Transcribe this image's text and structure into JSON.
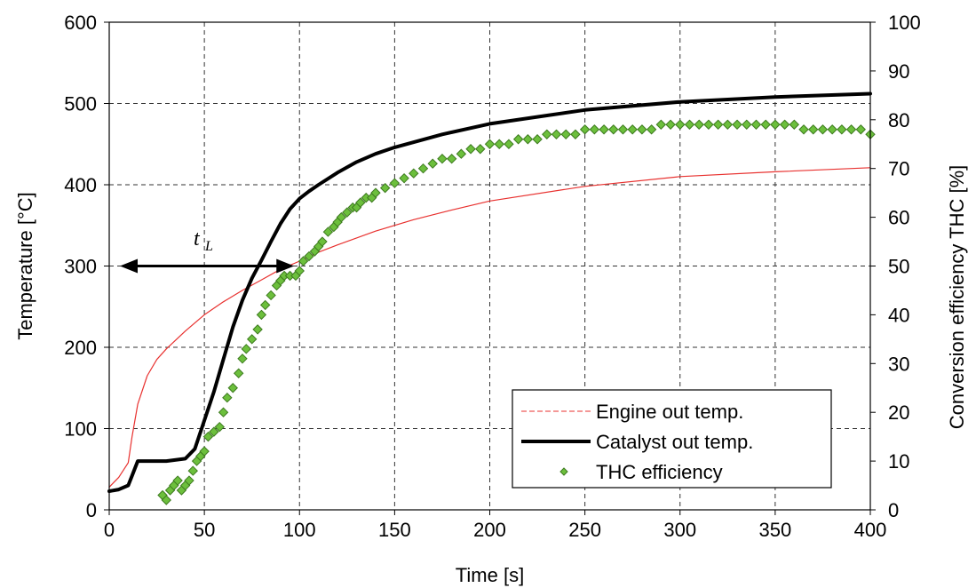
{
  "chart_data": {
    "type": "line",
    "xlabel": "Time [s]",
    "ylabel": "Temperature [°C]",
    "y2label": "Conversion efficiency THC [%]",
    "xlim": [
      0,
      400
    ],
    "ylim": [
      0,
      600
    ],
    "y2lim": [
      0,
      100
    ],
    "xticks": [
      "0",
      "50",
      "100",
      "150",
      "200",
      "250",
      "300",
      "350",
      "400"
    ],
    "yticks": [
      "0",
      "100",
      "200",
      "300",
      "400",
      "500",
      "600"
    ],
    "y2ticks": [
      "0",
      "10",
      "20",
      "30",
      "40",
      "50",
      "60",
      "70",
      "80",
      "90",
      "100"
    ],
    "grid": "dashed",
    "legend_position": "bottom-right",
    "series": [
      {
        "name": "Engine out temp.",
        "style": "thin-line",
        "color": "#e8312f",
        "axis": "left",
        "x": [
          0,
          5,
          10,
          12,
          15,
          20,
          25,
          30,
          40,
          50,
          60,
          70,
          80,
          90,
          100,
          110,
          120,
          140,
          160,
          180,
          200,
          250,
          300,
          350,
          400
        ],
        "y": [
          28,
          40,
          58,
          90,
          130,
          165,
          185,
          198,
          220,
          240,
          256,
          270,
          283,
          296,
          306,
          317,
          326,
          343,
          357,
          369,
          380,
          398,
          410,
          416,
          421
        ]
      },
      {
        "name": "Catalyst out temp.",
        "style": "thick-line",
        "color": "#000000",
        "axis": "left",
        "x": [
          0,
          5,
          10,
          12,
          15,
          20,
          30,
          40,
          45,
          50,
          55,
          60,
          65,
          70,
          75,
          80,
          85,
          90,
          95,
          100,
          105,
          110,
          120,
          130,
          140,
          150,
          175,
          200,
          250,
          300,
          350,
          400
        ],
        "y": [
          23,
          25,
          30,
          42,
          60,
          60,
          60,
          63,
          75,
          110,
          145,
          185,
          225,
          258,
          285,
          307,
          330,
          352,
          370,
          383,
          392,
          400,
          415,
          428,
          438,
          446,
          462,
          475,
          492,
          502,
          508,
          512
        ]
      },
      {
        "name": "THC efficiency",
        "style": "markers",
        "color": "#6cbf3c",
        "axis": "right",
        "x": [
          28,
          30,
          32,
          34,
          36,
          38,
          40,
          42,
          44,
          46,
          48,
          50,
          52,
          55,
          58,
          60,
          62,
          65,
          68,
          70,
          72,
          75,
          78,
          80,
          82,
          85,
          88,
          90,
          92,
          95,
          98,
          100,
          102,
          105,
          108,
          110,
          112,
          115,
          118,
          120,
          122,
          125,
          128,
          130,
          132,
          135,
          138,
          140,
          145,
          150,
          155,
          160,
          165,
          170,
          175,
          180,
          185,
          190,
          195,
          200,
          205,
          210,
          215,
          220,
          225,
          230,
          235,
          240,
          245,
          250,
          255,
          260,
          265,
          270,
          275,
          280,
          285,
          290,
          295,
          300,
          305,
          310,
          315,
          320,
          325,
          330,
          335,
          340,
          345,
          350,
          355,
          360,
          365,
          370,
          375,
          380,
          385,
          390,
          395,
          400
        ],
        "y": [
          3,
          2,
          4,
          5,
          6,
          4,
          5,
          6,
          8,
          10,
          11,
          12,
          15,
          16,
          17,
          20,
          23,
          25,
          28,
          31,
          33,
          35,
          37,
          40,
          42,
          44,
          46,
          47,
          48,
          48,
          48,
          49,
          51,
          52,
          53,
          54,
          55,
          57,
          58,
          59,
          60,
          61,
          62,
          62,
          63,
          64,
          64,
          65,
          66,
          67,
          68,
          69,
          70,
          71,
          72,
          72,
          73,
          74,
          74,
          75,
          75,
          75,
          76,
          76,
          76,
          77,
          77,
          77,
          77,
          78,
          78,
          78,
          78,
          78,
          78,
          78,
          78,
          79,
          79,
          79,
          79,
          79,
          79,
          79,
          79,
          79,
          79,
          79,
          79,
          79,
          79,
          79,
          78,
          78,
          78,
          78,
          78,
          78,
          78,
          77
        ]
      }
    ],
    "annotation": {
      "label": "t",
      "subscript": "L",
      "arrow_x": [
        0,
        100
      ],
      "arrow_y": 300
    }
  }
}
